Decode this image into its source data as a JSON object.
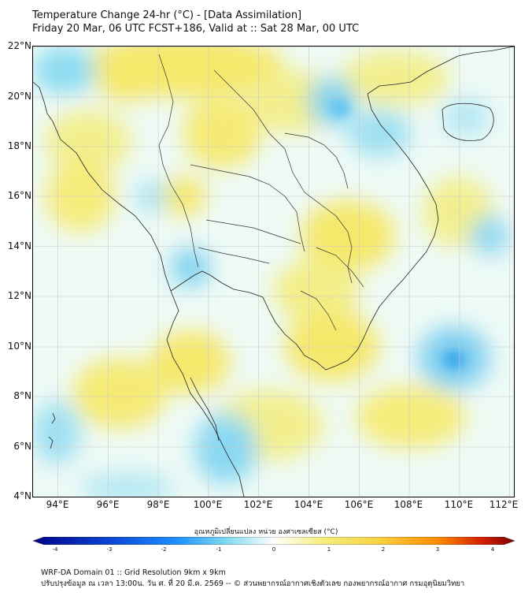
{
  "title": {
    "line1": "Temperature Change 24-hr (°C) - [Data Assimilation]",
    "line2": "Friday 20 Mar, 06 UTC FCST+186, Valid at :: Sat 28 Mar, 00 UTC"
  },
  "map": {
    "lat_labels": [
      "22°N",
      "20°N",
      "18°N",
      "16°N",
      "14°N",
      "12°N",
      "10°N",
      "8°N",
      "6°N",
      "4°N"
    ],
    "lon_labels": [
      "94°E",
      "96°E",
      "98°E",
      "100°E",
      "102°E",
      "104°E",
      "106°E",
      "108°E",
      "110°E",
      "112°E"
    ]
  },
  "colorbar": {
    "title": "อุณหภูมิเปลี่ยนแปลง หน่วย องศาเซลเซียส (°C)",
    "ticks": [
      "-4",
      "-3",
      "-2",
      "-1",
      "0",
      "1",
      "2",
      "3",
      "4"
    ],
    "colors": {
      "min": "#00008b",
      "blue": "#1e90ff",
      "cyan": "#7fd8f0",
      "zero": "#ffffff",
      "yellow": "#f5ef80",
      "orange": "#ff8c00",
      "max": "#800000"
    }
  },
  "footer": {
    "line1": "WRF-DA Domain 01 :: Grid Resolution 9km x 9km",
    "line2": "ปรับปรุงข้อมูล ณ เวลา 13:00น. วัน ศ. ที่ 20 มี.ค. 2569 -- © ส่วนพยากรณ์อากาศเชิงตัวเลข กองพยากรณ์อากาศ กรมอุตุนิยมวิทยา"
  }
}
